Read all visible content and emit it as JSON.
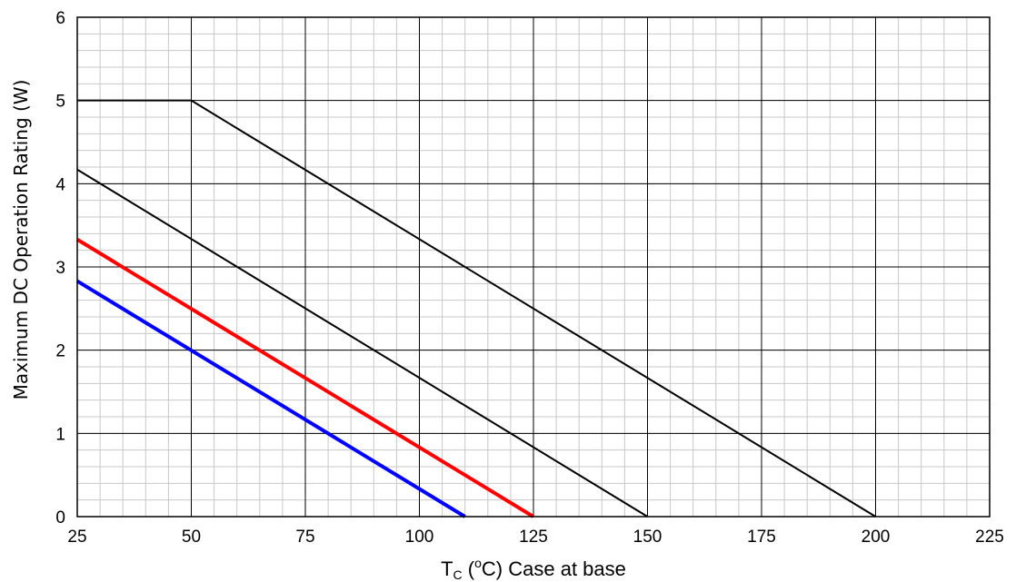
{
  "chart_data": {
    "type": "line",
    "xlabel": {
      "main": "T",
      "sub": "C",
      "open": " (",
      "sup": "o",
      "rest": "C) Case at base"
    },
    "ylabel": "Maximum DC Operation Rating (W)",
    "xlim": [
      25,
      225
    ],
    "ylim": [
      0,
      6
    ],
    "x_ticks": [
      "25",
      "50",
      "75",
      "100",
      "125",
      "150",
      "175",
      "200",
      "225"
    ],
    "y_ticks": [
      "0",
      "1",
      "2",
      "3",
      "4",
      "5",
      "6"
    ],
    "x_major_step": 25,
    "x_minor_step": 5,
    "y_major_step": 1,
    "y_minor_step": 0.2,
    "grid": true,
    "series": [
      {
        "color": "#000000",
        "width": 2,
        "x": [
          25,
          50,
          200
        ],
        "y": [
          5,
          5,
          0
        ]
      },
      {
        "color": "#000000",
        "width": 2,
        "x": [
          25,
          150
        ],
        "y": [
          4.17,
          0
        ]
      },
      {
        "color": "#ff0000",
        "width": 4,
        "x": [
          25,
          125
        ],
        "y": [
          3.33,
          0
        ]
      },
      {
        "color": "#0000ff",
        "width": 4,
        "x": [
          25,
          110
        ],
        "y": [
          2.83,
          0
        ]
      }
    ]
  }
}
